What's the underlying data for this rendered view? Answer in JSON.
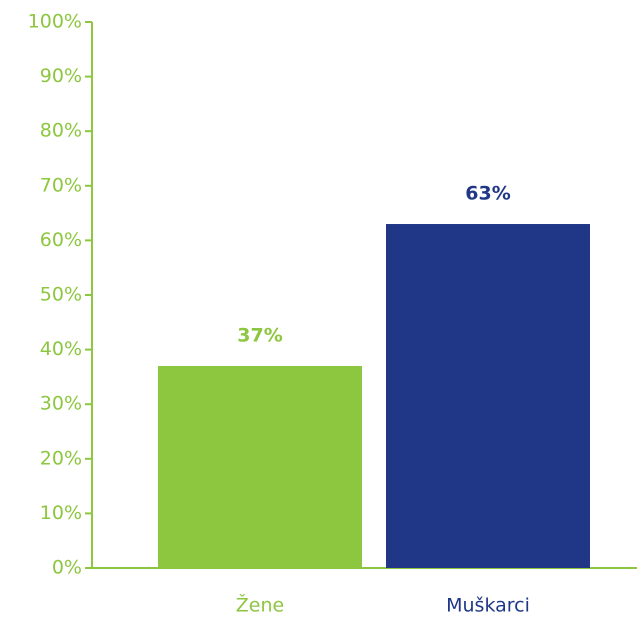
{
  "chart_data": {
    "type": "bar",
    "categories": [
      "Žene",
      "Muškarci"
    ],
    "values": [
      37,
      63
    ],
    "value_labels": [
      "37%",
      "63%"
    ],
    "colors": [
      "#8dc63f",
      "#1f3786"
    ],
    "axis_color": "#8dc63f",
    "ylim": [
      0,
      100
    ],
    "yticks": [
      {
        "value": 0,
        "label": "0%"
      },
      {
        "value": 10,
        "label": "10%"
      },
      {
        "value": 20,
        "label": "20%"
      },
      {
        "value": 30,
        "label": "30%"
      },
      {
        "value": 40,
        "label": "40%"
      },
      {
        "value": 50,
        "label": "50%"
      },
      {
        "value": 60,
        "label": "60%"
      },
      {
        "value": 70,
        "label": "70%"
      },
      {
        "value": 80,
        "label": "80%"
      },
      {
        "value": 90,
        "label": "90%"
      },
      {
        "value": 100,
        "label": "100%"
      }
    ],
    "grid": false
  }
}
